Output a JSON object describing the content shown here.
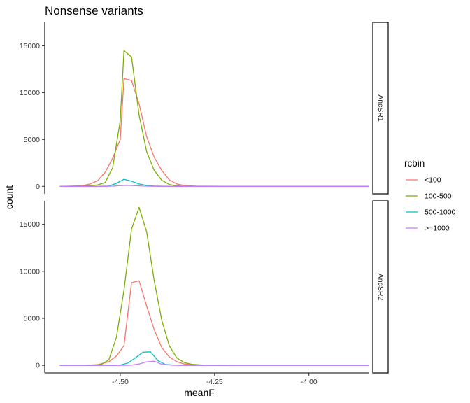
{
  "chart_data": {
    "type": "line",
    "title": "Nonsense variants",
    "xlabel": "meanF",
    "ylabel": "count",
    "xlim": [
      -4.7,
      -3.84
    ],
    "ylim": [
      -800,
      17500
    ],
    "x_ticks": [
      -4.5,
      -4.25,
      -4.0
    ],
    "x_tick_labels": [
      "-4.50",
      "-4.25",
      "-4.00"
    ],
    "y_ticks": [
      0,
      5000,
      10000,
      15000
    ],
    "y_tick_labels": [
      "0",
      "5000",
      "10000",
      "15000"
    ],
    "grid": false,
    "legend": {
      "title": "rcbin",
      "position": "right",
      "entries": [
        "<100",
        "100-500",
        "500-1000",
        ">=1000"
      ]
    },
    "series_colors": [
      "#F8766D",
      "#7CAE00",
      "#00BFC4",
      "#C77CFF"
    ],
    "panels": [
      {
        "strip": "AncSR1",
        "series": [
          {
            "name": "<100",
            "x": [
              -4.66,
              -4.63,
              -4.6,
              -4.58,
              -4.56,
              -4.54,
              -4.52,
              -4.5,
              -4.49,
              -4.47,
              -4.45,
              -4.43,
              -4.41,
              -4.39,
              -4.37,
              -4.35,
              -4.33,
              -4.3,
              -4.2,
              -4.1,
              -4.0,
              -3.9,
              -3.84
            ],
            "values": [
              0,
              30,
              80,
              250,
              600,
              1500,
              3000,
              5000,
              11500,
              11300,
              8800,
              5300,
              3100,
              1700,
              700,
              250,
              100,
              30,
              0,
              0,
              0,
              0,
              0
            ]
          },
          {
            "name": "100-500",
            "x": [
              -4.66,
              -4.6,
              -4.56,
              -4.54,
              -4.52,
              -4.5,
              -4.49,
              -4.47,
              -4.45,
              -4.43,
              -4.41,
              -4.39,
              -4.37,
              -4.35,
              -4.33,
              -4.3,
              -4.2,
              -4.1,
              -4.0,
              -3.9,
              -3.84
            ],
            "values": [
              0,
              30,
              150,
              400,
              2000,
              7000,
              14500,
              13800,
              7600,
              3700,
              1700,
              650,
              200,
              60,
              20,
              0,
              0,
              0,
              0,
              0,
              0
            ]
          },
          {
            "name": "500-1000",
            "x": [
              -4.66,
              -4.56,
              -4.53,
              -4.51,
              -4.49,
              -4.47,
              -4.45,
              -4.43,
              -4.41,
              -4.38,
              -4.3,
              -4.2,
              -4.1,
              -4.0,
              -3.9,
              -3.84
            ],
            "values": [
              0,
              0,
              40,
              320,
              750,
              550,
              250,
              100,
              40,
              10,
              0,
              0,
              0,
              0,
              0,
              0
            ]
          },
          {
            "name": ">=1000",
            "x": [
              -4.66,
              -4.55,
              -4.52,
              -4.5,
              -4.48,
              -4.46,
              -4.44,
              -4.41,
              -4.35,
              -4.2,
              -4.0,
              -3.84
            ],
            "values": [
              0,
              0,
              20,
              80,
              110,
              70,
              30,
              10,
              0,
              0,
              0,
              0
            ]
          }
        ]
      },
      {
        "strip": "AncSR2",
        "series": [
          {
            "name": "<100",
            "x": [
              -4.66,
              -4.6,
              -4.56,
              -4.53,
              -4.51,
              -4.49,
              -4.47,
              -4.45,
              -4.43,
              -4.41,
              -4.39,
              -4.37,
              -4.35,
              -4.33,
              -4.31,
              -4.28,
              -4.2,
              -4.1,
              -4.0,
              -3.9,
              -3.84
            ],
            "values": [
              0,
              0,
              80,
              400,
              1000,
              2100,
              8800,
              9000,
              6300,
              3800,
              1900,
              900,
              400,
              150,
              60,
              20,
              0,
              0,
              0,
              0,
              0
            ]
          },
          {
            "name": "100-500",
            "x": [
              -4.66,
              -4.58,
              -4.55,
              -4.53,
              -4.51,
              -4.49,
              -4.47,
              -4.45,
              -4.43,
              -4.41,
              -4.39,
              -4.37,
              -4.35,
              -4.33,
              -4.31,
              -4.28,
              -4.2,
              -4.1,
              -4.0,
              -3.9,
              -3.84
            ],
            "values": [
              0,
              0,
              100,
              600,
              3000,
              8000,
              14500,
              16800,
              14200,
              9000,
              4800,
              2100,
              800,
              300,
              120,
              30,
              0,
              0,
              0,
              0,
              0
            ]
          },
          {
            "name": "500-1000",
            "x": [
              -4.66,
              -4.52,
              -4.5,
              -4.48,
              -4.46,
              -4.44,
              -4.42,
              -4.4,
              -4.38,
              -4.35,
              -4.3,
              -4.2,
              -4.0,
              -3.84
            ],
            "values": [
              0,
              0,
              40,
              250,
              800,
              1400,
              1450,
              500,
              100,
              20,
              0,
              0,
              0,
              0
            ]
          },
          {
            "name": ">=1000",
            "x": [
              -4.66,
              -4.5,
              -4.47,
              -4.45,
              -4.43,
              -4.41,
              -4.39,
              -4.36,
              -4.3,
              -4.2,
              -4.0,
              -3.84
            ],
            "values": [
              0,
              0,
              30,
              150,
              380,
              450,
              120,
              20,
              0,
              0,
              0,
              0
            ]
          }
        ]
      }
    ]
  }
}
